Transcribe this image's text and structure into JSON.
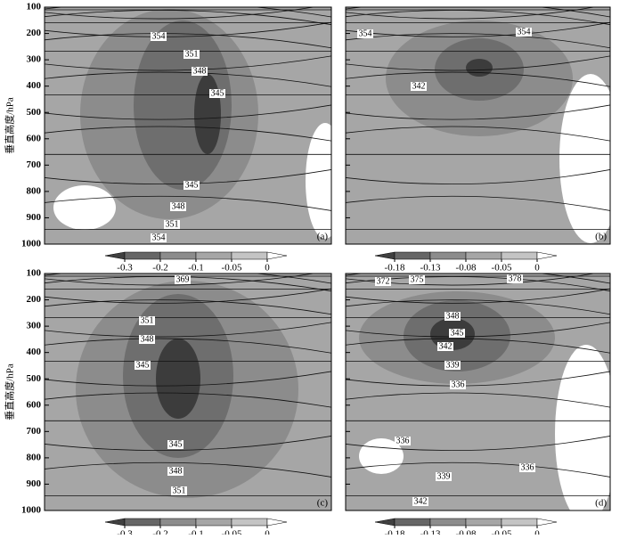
{
  "chart_data": [
    {
      "type": "contour",
      "label": "(a)",
      "ylabel": "垂直高度/hPa",
      "ylim": [
        1000,
        100
      ],
      "yticks": [
        100,
        200,
        300,
        400,
        500,
        600,
        700,
        800,
        900,
        1000
      ],
      "contour_labels": [
        354,
        351,
        348,
        345,
        345,
        348,
        351,
        354
      ],
      "colorbar_ticks": [
        -0.3,
        -0.2,
        -0.1,
        -0.05,
        0
      ]
    },
    {
      "type": "contour",
      "label": "(b)",
      "ylim": [
        1000,
        100
      ],
      "yticks": [
        100,
        200,
        300,
        400,
        500,
        600,
        700,
        800,
        900,
        1000
      ],
      "contour_labels": [
        354,
        354,
        342
      ],
      "colorbar_ticks": [
        -0.18,
        -0.13,
        -0.08,
        -0.05,
        0
      ]
    },
    {
      "type": "contour",
      "label": "(c)",
      "ylabel": "垂直高度/hPa",
      "ylim": [
        1000,
        100
      ],
      "yticks": [
        100,
        200,
        300,
        400,
        500,
        600,
        700,
        800,
        900,
        1000
      ],
      "contour_labels": [
        369,
        351,
        348,
        345,
        345,
        348,
        351
      ],
      "colorbar_ticks": [
        -0.3,
        -0.2,
        -0.1,
        -0.05,
        0
      ]
    },
    {
      "type": "contour",
      "label": "(d)",
      "ylim": [
        1000,
        100
      ],
      "yticks": [
        100,
        200,
        300,
        400,
        500,
        600,
        700,
        800,
        900,
        1000
      ],
      "contour_labels": [
        372,
        375,
        378,
        348,
        345,
        342,
        339,
        336,
        336,
        339,
        336,
        342
      ],
      "colorbar_ticks": [
        -0.18,
        -0.13,
        -0.08,
        -0.05,
        0
      ]
    }
  ]
}
